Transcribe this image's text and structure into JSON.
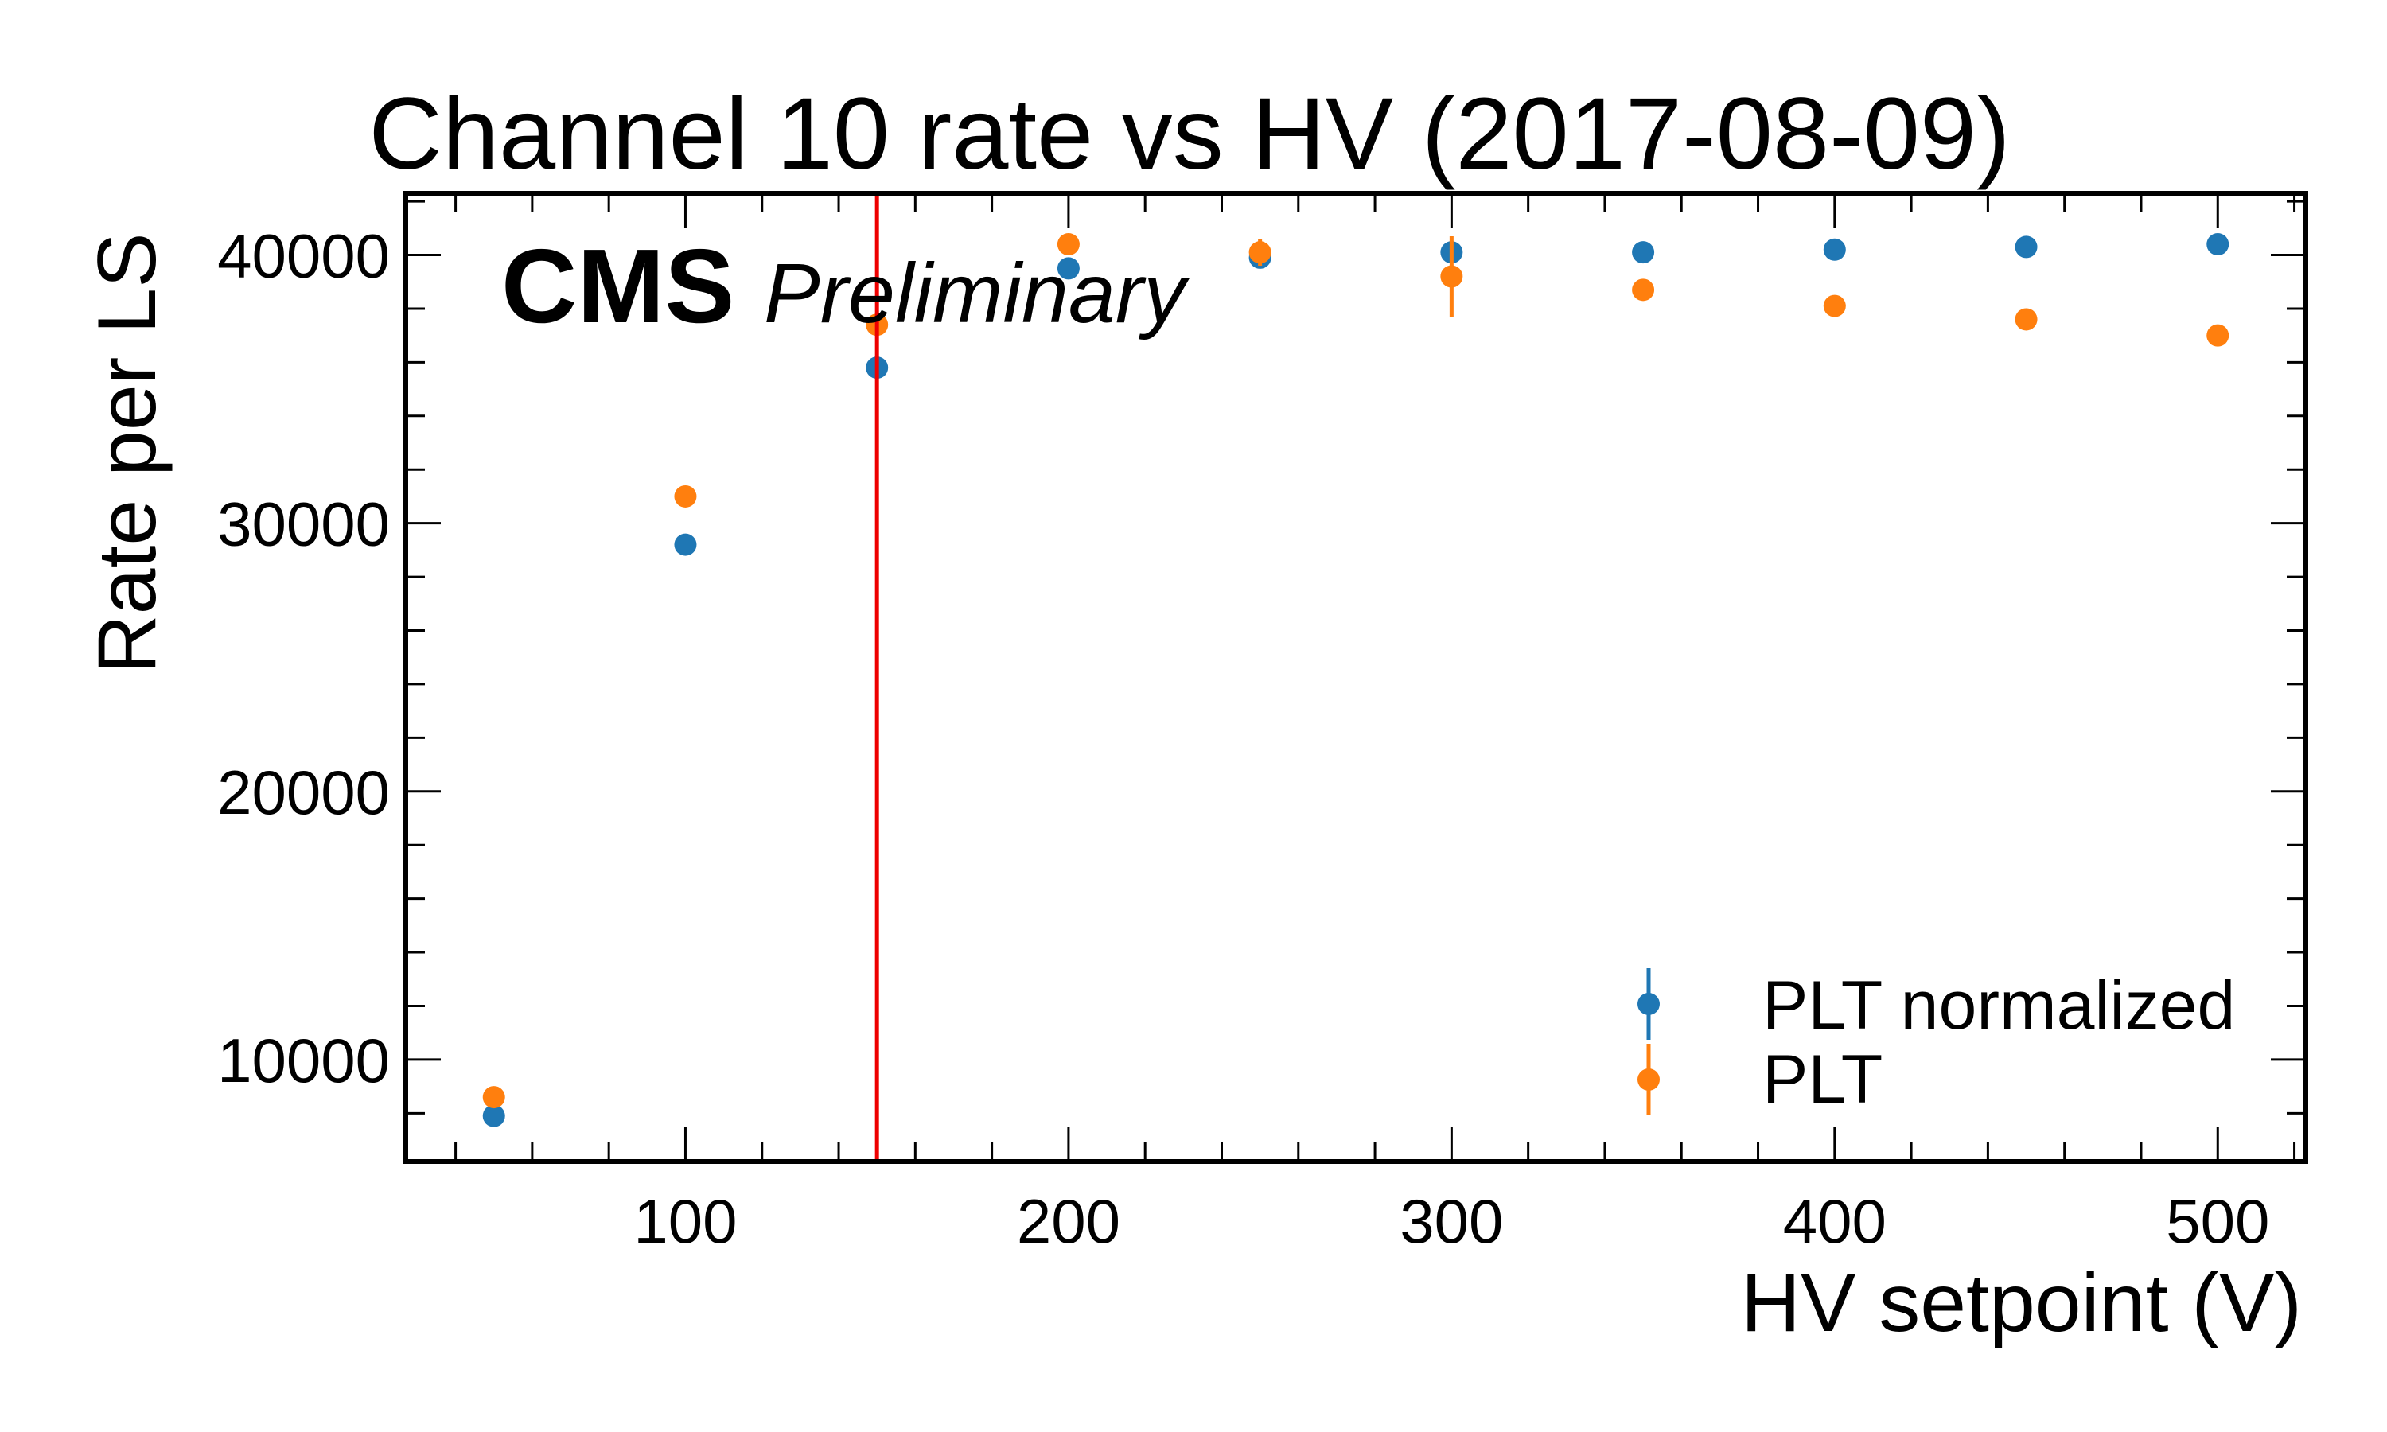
{
  "chart_data": {
    "type": "scatter",
    "title": "Channel 10 rate vs HV (2017-08-09)",
    "xlabel": "HV setpoint (V)",
    "ylabel": "Rate per LS",
    "xlim": [
      27,
      523
    ],
    "ylim": [
      6200,
      42300
    ],
    "xticks": [
      100,
      200,
      300,
      400,
      500
    ],
    "xtick_labels": [
      "100",
      "200",
      "300",
      "400",
      "500"
    ],
    "yticks": [
      10000,
      20000,
      30000,
      40000
    ],
    "ytick_labels": [
      "10000",
      "20000",
      "30000",
      "40000"
    ],
    "x_minor_step": 20,
    "y_minor_step": 2000,
    "grid": false,
    "legend_position": "lower-right",
    "experiment_label": "CMS",
    "status_label": "Preliminary",
    "vertical_line": {
      "x": 150,
      "color": "#ee0000"
    },
    "series": [
      {
        "name": "PLT normalized",
        "color": "#1f77b4",
        "x": [
          50,
          100,
          150,
          200,
          250,
          300,
          350,
          400,
          450,
          500
        ],
        "y": [
          7900,
          29200,
          35800,
          39500,
          39900,
          40100,
          40100,
          40200,
          40300,
          40400
        ],
        "yerr": [
          100,
          150,
          200,
          200,
          300,
          200,
          150,
          150,
          150,
          150
        ]
      },
      {
        "name": "PLT",
        "color": "#ff7f0e",
        "x": [
          50,
          100,
          150,
          200,
          250,
          300,
          350,
          400,
          450,
          500
        ],
        "y": [
          8600,
          31000,
          37400,
          40400,
          40100,
          39200,
          38700,
          38100,
          37600,
          37000
        ],
        "yerr": [
          150,
          200,
          300,
          200,
          500,
          1500,
          250,
          200,
          400,
          200
        ]
      }
    ]
  }
}
